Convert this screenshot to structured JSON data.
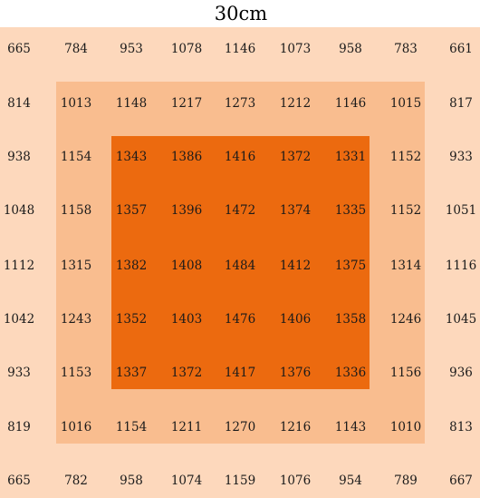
{
  "chart_data": {
    "type": "heatmap",
    "title": "30cm",
    "rows": [
      [
        665,
        784,
        953,
        1078,
        1146,
        1073,
        958,
        783,
        661
      ],
      [
        814,
        1013,
        1148,
        1217,
        1273,
        1212,
        1146,
        1015,
        817
      ],
      [
        938,
        1154,
        1343,
        1386,
        1416,
        1372,
        1331,
        1152,
        933
      ],
      [
        1048,
        1158,
        1357,
        1396,
        1472,
        1374,
        1335,
        1152,
        1051
      ],
      [
        1112,
        1315,
        1382,
        1408,
        1484,
        1412,
        1375,
        1314,
        1116
      ],
      [
        1042,
        1243,
        1352,
        1403,
        1476,
        1406,
        1358,
        1246,
        1045
      ],
      [
        933,
        1153,
        1337,
        1372,
        1417,
        1376,
        1336,
        1156,
        936
      ],
      [
        819,
        1016,
        1154,
        1211,
        1270,
        1216,
        1143,
        1010,
        813
      ],
      [
        665,
        782,
        958,
        1074,
        1159,
        1076,
        954,
        789,
        667
      ]
    ],
    "zones": [
      {
        "rows": [
          0,
          8
        ],
        "cols": [
          0,
          8
        ],
        "color": "#fdd8bc"
      },
      {
        "rows": [
          1,
          7
        ],
        "cols": [
          1,
          7
        ],
        "color": "#f9bd8f"
      },
      {
        "rows": [
          2,
          6
        ],
        "cols": [
          2,
          6
        ],
        "color": "#ec6a0f"
      }
    ]
  }
}
